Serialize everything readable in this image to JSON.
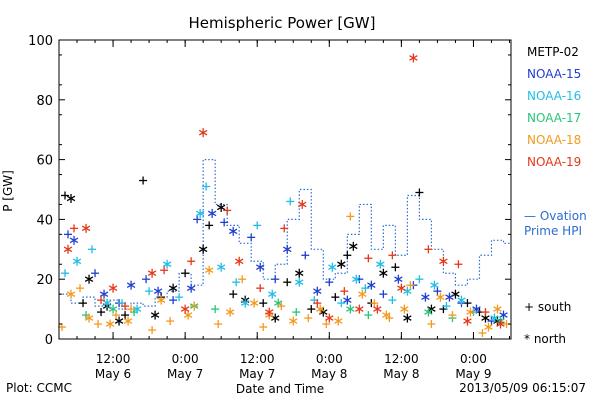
{
  "footer": {
    "plot_credit": "Plot: CCMC",
    "timestamp": "2013/05/09 06:15:07"
  },
  "colors": {
    "METP-02": "#000000",
    "NOAA-15": "#1f3fd0",
    "NOAA-16": "#22bde6",
    "NOAA-17": "#27c47a",
    "NOAA-18": "#f39a1d",
    "NOAA-19": "#e3381a",
    "ovation": "#2c6cd4"
  },
  "chart_data": {
    "type": "scatter",
    "title": "Hemispheric Power [GW]",
    "xlabel": "Date and Time",
    "ylabel": "P [GW]",
    "xlim": [
      "2013-05-06 03:00",
      "2013-05-09 06:15"
    ],
    "ylim": [
      0,
      100
    ],
    "yticks": [
      0,
      20,
      40,
      60,
      80,
      100
    ],
    "xticks": [
      {
        "time": "12:00",
        "date": "May 6"
      },
      {
        "time": "0:00",
        "date": "May 7"
      },
      {
        "time": "12:00",
        "date": "May 7"
      },
      {
        "time": "0:00",
        "date": "May 8"
      },
      {
        "time": "12:00",
        "date": "May 8"
      },
      {
        "time": "0:00",
        "date": "May 9"
      }
    ],
    "legend": [
      "METP-02",
      "NOAA-15",
      "NOAA-16",
      "NOAA-17",
      "NOAA-18",
      "NOAA-19"
    ],
    "ovation_label": [
      "— Ovation",
      "Prime HPI"
    ],
    "marker_legend": {
      "south": "+ south",
      "north": "* north"
    },
    "series": [
      {
        "name": "METP-02",
        "south": [
          [
            "2013-05-06 04:00",
            48
          ],
          [
            "2013-05-06 07:00",
            12
          ],
          [
            "2013-05-06 10:00",
            9
          ],
          [
            "2013-05-06 14:00",
            8
          ],
          [
            "2013-05-06 17:00",
            53
          ],
          [
            "2013-05-06 20:00",
            14
          ],
          [
            "2013-05-07 00:00",
            22
          ],
          [
            "2013-05-07 04:00",
            38
          ],
          [
            "2013-05-07 08:00",
            15
          ],
          [
            "2013-05-07 13:00",
            12
          ],
          [
            "2013-05-07 17:00",
            19
          ],
          [
            "2013-05-07 21:00",
            10
          ],
          [
            "2013-05-08 01:00",
            14
          ],
          [
            "2013-05-08 03:00",
            28
          ],
          [
            "2013-05-08 07:00",
            12
          ],
          [
            "2013-05-08 11:00",
            24
          ],
          [
            "2013-05-08 15:00",
            49
          ],
          [
            "2013-05-08 19:00",
            10
          ],
          [
            "2013-05-08 23:00",
            12
          ],
          [
            "2013-05-09 01:00",
            9
          ]
        ],
        "north": [
          [
            "2013-05-06 05:00",
            47
          ],
          [
            "2013-05-06 08:00",
            20
          ],
          [
            "2013-05-06 11:00",
            11
          ],
          [
            "2013-05-06 13:00",
            6
          ],
          [
            "2013-05-06 19:00",
            8
          ],
          [
            "2013-05-06 22:00",
            17
          ],
          [
            "2013-05-07 03:00",
            30
          ],
          [
            "2013-05-07 06:00",
            44
          ],
          [
            "2013-05-07 10:00",
            13
          ],
          [
            "2013-05-07 15:00",
            7
          ],
          [
            "2013-05-07 19:00",
            22
          ],
          [
            "2013-05-07 23:00",
            9
          ],
          [
            "2013-05-08 02:00",
            25
          ],
          [
            "2013-05-08 04:00",
            31
          ],
          [
            "2013-05-08 09:00",
            22
          ],
          [
            "2013-05-08 13:00",
            7
          ],
          [
            "2013-05-08 17:00",
            10
          ],
          [
            "2013-05-08 21:00",
            15
          ],
          [
            "2013-05-09 02:00",
            7
          ],
          [
            "2013-05-09 04:00",
            6
          ]
        ]
      },
      {
        "name": "NOAA-15",
        "south": [
          [
            "2013-05-06 04:30",
            35
          ],
          [
            "2013-05-06 09:00",
            22
          ],
          [
            "2013-05-06 13:00",
            12
          ],
          [
            "2013-05-06 17:30",
            20
          ],
          [
            "2013-05-06 22:00",
            13
          ],
          [
            "2013-05-07 02:00",
            40
          ],
          [
            "2013-05-07 06:30",
            39
          ],
          [
            "2013-05-07 11:00",
            34
          ],
          [
            "2013-05-07 15:00",
            20
          ],
          [
            "2013-05-07 20:00",
            28
          ],
          [
            "2013-05-08 00:00",
            19
          ],
          [
            "2013-05-08 05:00",
            20
          ],
          [
            "2013-05-08 09:00",
            15
          ],
          [
            "2013-05-08 14:00",
            18
          ],
          [
            "2013-05-08 18:00",
            16
          ],
          [
            "2013-05-08 22:00",
            12
          ],
          [
            "2013-05-09 03:00",
            6
          ]
        ],
        "north": [
          [
            "2013-05-06 05:30",
            33
          ],
          [
            "2013-05-06 10:30",
            15
          ],
          [
            "2013-05-06 15:00",
            18
          ],
          [
            "2013-05-06 19:30",
            16
          ],
          [
            "2013-05-07 01:00",
            17
          ],
          [
            "2013-05-07 04:30",
            42
          ],
          [
            "2013-05-07 08:00",
            36
          ],
          [
            "2013-05-07 12:30",
            24
          ],
          [
            "2013-05-07 17:00",
            30
          ],
          [
            "2013-05-07 22:00",
            16
          ],
          [
            "2013-05-08 03:00",
            13
          ],
          [
            "2013-05-08 07:00",
            18
          ],
          [
            "2013-05-08 11:30",
            20
          ],
          [
            "2013-05-08 16:00",
            14
          ],
          [
            "2013-05-08 20:00",
            14
          ],
          [
            "2013-05-09 00:30",
            10
          ],
          [
            "2013-05-09 05:00",
            8
          ]
        ]
      },
      {
        "name": "NOAA-16",
        "south": [
          [
            "2013-05-06 04:00",
            22
          ],
          [
            "2013-05-06 08:30",
            30
          ],
          [
            "2013-05-06 13:30",
            12
          ],
          [
            "2013-05-06 18:00",
            16
          ],
          [
            "2013-05-06 23:00",
            14
          ],
          [
            "2013-05-07 03:30",
            51
          ],
          [
            "2013-05-07 08:30",
            19
          ],
          [
            "2013-05-07 12:00",
            38
          ],
          [
            "2013-05-07 17:30",
            46
          ],
          [
            "2013-05-07 21:30",
            13
          ],
          [
            "2013-05-08 02:00",
            12
          ],
          [
            "2013-05-08 06:00",
            17
          ],
          [
            "2013-05-08 10:30",
            13
          ],
          [
            "2013-05-08 15:00",
            20
          ],
          [
            "2013-05-08 19:30",
            11
          ],
          [
            "2013-05-09 00:00",
            9
          ]
        ],
        "north": [
          [
            "2013-05-06 06:00",
            26
          ],
          [
            "2013-05-06 11:00",
            12
          ],
          [
            "2013-05-06 16:00",
            10
          ],
          [
            "2013-05-06 21:00",
            25
          ],
          [
            "2013-05-07 02:30",
            42
          ],
          [
            "2013-05-07 06:00",
            24
          ],
          [
            "2013-05-07 10:00",
            12
          ],
          [
            "2013-05-07 14:30",
            15
          ],
          [
            "2013-05-07 19:00",
            19
          ],
          [
            "2013-05-08 00:30",
            24
          ],
          [
            "2013-05-08 04:30",
            20
          ],
          [
            "2013-05-08 08:30",
            25
          ],
          [
            "2013-05-08 13:00",
            16
          ],
          [
            "2013-05-08 17:30",
            18
          ],
          [
            "2013-05-08 22:00",
            13
          ],
          [
            "2013-05-09 03:30",
            7
          ]
        ]
      },
      {
        "name": "NOAA-17",
        "south": [
          [
            "2013-05-06 07:30",
            8
          ],
          [
            "2013-05-06 15:30",
            9
          ],
          [
            "2013-05-07 05:00",
            10
          ],
          [
            "2013-05-07 18:30",
            9
          ],
          [
            "2013-05-08 06:30",
            8
          ],
          [
            "2013-05-08 20:30",
            7
          ]
        ],
        "north": [
          [
            "2013-05-06 12:00",
            10
          ],
          [
            "2013-05-07 01:30",
            11
          ],
          [
            "2013-05-07 15:30",
            12
          ],
          [
            "2013-05-08 03:30",
            10
          ],
          [
            "2013-05-08 16:30",
            9
          ],
          [
            "2013-05-09 04:30",
            6
          ]
        ]
      },
      {
        "name": "NOAA-18",
        "south": [
          [
            "2013-05-06 03:30",
            4
          ],
          [
            "2013-05-06 06:30",
            17
          ],
          [
            "2013-05-06 09:30",
            5
          ],
          [
            "2013-05-06 12:30",
            8
          ],
          [
            "2013-05-06 15:00",
            10
          ],
          [
            "2013-05-06 18:30",
            3
          ],
          [
            "2013-05-06 21:30",
            6
          ],
          [
            "2013-05-07 01:30",
            11
          ],
          [
            "2013-05-07 05:30",
            5
          ],
          [
            "2013-05-07 09:30",
            20
          ],
          [
            "2013-05-07 13:00",
            4
          ],
          [
            "2013-05-07 16:00",
            11
          ],
          [
            "2013-05-07 20:30",
            7
          ],
          [
            "2013-05-07 23:30",
            5
          ],
          [
            "2013-05-08 03:30",
            41
          ],
          [
            "2013-05-08 07:30",
            12
          ],
          [
            "2013-05-08 10:00",
            7
          ],
          [
            "2013-05-08 13:30",
            18
          ],
          [
            "2013-05-08 17:00",
            5
          ],
          [
            "2013-05-08 20:30",
            8
          ],
          [
            "2013-05-09 01:30",
            2
          ],
          [
            "2013-05-09 05:30",
            5
          ]
        ],
        "north": [
          [
            "2013-05-06 05:00",
            15
          ],
          [
            "2013-05-06 08:00",
            7
          ],
          [
            "2013-05-06 11:30",
            5
          ],
          [
            "2013-05-06 14:30",
            6
          ],
          [
            "2013-05-06 20:00",
            13
          ],
          [
            "2013-05-07 00:30",
            8
          ],
          [
            "2013-05-07 04:00",
            23
          ],
          [
            "2013-05-07 07:30",
            9
          ],
          [
            "2013-05-07 11:30",
            12
          ],
          [
            "2013-05-07 14:00",
            8
          ],
          [
            "2013-05-07 18:00",
            6
          ],
          [
            "2013-05-07 22:30",
            10
          ],
          [
            "2013-05-08 01:30",
            6
          ],
          [
            "2013-05-08 05:30",
            15
          ],
          [
            "2013-05-08 09:30",
            8
          ],
          [
            "2013-05-08 12:30",
            10
          ],
          [
            "2013-05-08 18:30",
            14
          ],
          [
            "2013-05-08 23:30",
            9
          ],
          [
            "2013-05-09 02:30",
            4
          ],
          [
            "2013-05-09 04:00",
            10
          ]
        ]
      },
      {
        "name": "NOAA-19",
        "south": [
          [
            "2013-05-06 05:30",
            37
          ],
          [
            "2013-05-06 10:00",
            13
          ],
          [
            "2013-05-06 14:00",
            11
          ],
          [
            "2013-05-06 20:30",
            23
          ],
          [
            "2013-05-07 01:00",
            26
          ],
          [
            "2013-05-07 07:00",
            43
          ],
          [
            "2013-05-07 12:30",
            17
          ],
          [
            "2013-05-07 16:30",
            37
          ],
          [
            "2013-05-07 22:00",
            12
          ],
          [
            "2013-05-08 02:30",
            16
          ],
          [
            "2013-05-08 06:30",
            27
          ],
          [
            "2013-05-08 10:30",
            28
          ],
          [
            "2013-05-08 16:30",
            30
          ],
          [
            "2013-05-08 21:30",
            25
          ],
          [
            "2013-05-09 02:00",
            9
          ]
        ],
        "north": [
          [
            "2013-05-06 04:30",
            30
          ],
          [
            "2013-05-06 07:30",
            37
          ],
          [
            "2013-05-06 12:00",
            17
          ],
          [
            "2013-05-06 18:30",
            22
          ],
          [
            "2013-05-07 00:00",
            10
          ],
          [
            "2013-05-07 03:00",
            69
          ],
          [
            "2013-05-07 09:00",
            26
          ],
          [
            "2013-05-07 14:00",
            9
          ],
          [
            "2013-05-07 19:30",
            45
          ],
          [
            "2013-05-08 00:00",
            7
          ],
          [
            "2013-05-08 05:00",
            10
          ],
          [
            "2013-05-08 08:00",
            10
          ],
          [
            "2013-05-08 12:00",
            17
          ],
          [
            "2013-05-08 14:00",
            94
          ],
          [
            "2013-05-08 19:00",
            26
          ],
          [
            "2013-05-08 23:00",
            6
          ],
          [
            "2013-05-09 04:30",
            5
          ]
        ]
      }
    ],
    "ovation_hpi": [
      [
        "2013-05-06 03:00",
        15
      ],
      [
        "2013-05-06 05:00",
        12
      ],
      [
        "2013-05-06 07:00",
        14
      ],
      [
        "2013-05-06 09:00",
        11
      ],
      [
        "2013-05-06 11:00",
        13
      ],
      [
        "2013-05-06 13:00",
        10
      ],
      [
        "2013-05-06 15:00",
        12
      ],
      [
        "2013-05-06 17:00",
        11
      ],
      [
        "2013-05-06 19:00",
        14
      ],
      [
        "2013-05-06 21:00",
        16
      ],
      [
        "2013-05-06 23:00",
        22
      ],
      [
        "2013-05-07 01:00",
        18
      ],
      [
        "2013-05-07 03:00",
        60
      ],
      [
        "2013-05-07 05:00",
        45
      ],
      [
        "2013-05-07 07:00",
        38
      ],
      [
        "2013-05-07 09:00",
        32
      ],
      [
        "2013-05-07 11:00",
        26
      ],
      [
        "2013-05-07 13:00",
        20
      ],
      [
        "2013-05-07 15:00",
        25
      ],
      [
        "2013-05-07 17:00",
        40
      ],
      [
        "2013-05-07 19:00",
        50
      ],
      [
        "2013-05-07 21:00",
        30
      ],
      [
        "2013-05-07 23:00",
        20
      ],
      [
        "2013-05-08 01:00",
        22
      ],
      [
        "2013-05-08 03:00",
        35
      ],
      [
        "2013-05-08 05:00",
        45
      ],
      [
        "2013-05-08 07:00",
        30
      ],
      [
        "2013-05-08 09:00",
        38
      ],
      [
        "2013-05-08 11:00",
        28
      ],
      [
        "2013-05-08 13:00",
        48
      ],
      [
        "2013-05-08 15:00",
        40
      ],
      [
        "2013-05-08 17:00",
        30
      ],
      [
        "2013-05-08 19:00",
        22
      ],
      [
        "2013-05-08 21:00",
        18
      ],
      [
        "2013-05-08 23:00",
        20
      ],
      [
        "2013-05-09 01:00",
        28
      ],
      [
        "2013-05-09 03:00",
        33
      ],
      [
        "2013-05-09 05:00",
        32
      ]
    ]
  }
}
